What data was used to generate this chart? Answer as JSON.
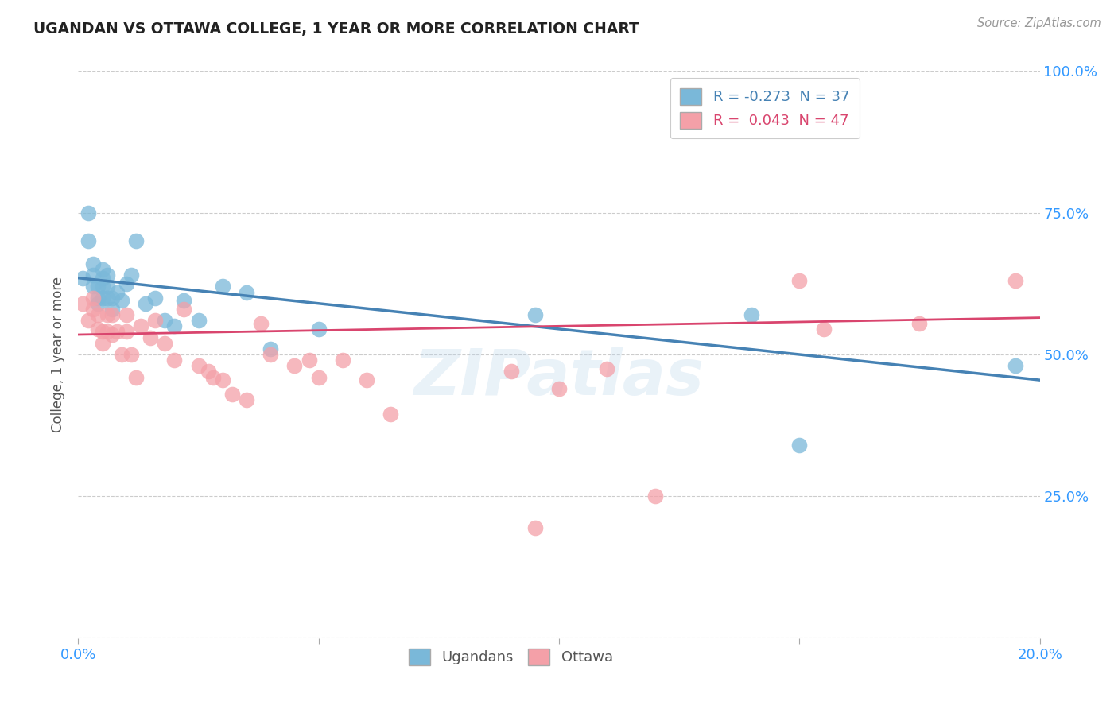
{
  "title": "UGANDAN VS OTTAWA COLLEGE, 1 YEAR OR MORE CORRELATION CHART",
  "source": "Source: ZipAtlas.com",
  "ylabel_label": "College, 1 year or more",
  "xmin": 0.0,
  "xmax": 0.2,
  "ymin": 0.0,
  "ymax": 1.0,
  "xtick_vals": [
    0.0,
    0.05,
    0.1,
    0.15,
    0.2
  ],
  "xtick_labels": [
    "0.0%",
    "",
    "",
    "",
    "20.0%"
  ],
  "ytick_vals": [
    0.0,
    0.25,
    0.5,
    0.75,
    1.0
  ],
  "ytick_labels": [
    "",
    "25.0%",
    "50.0%",
    "75.0%",
    "100.0%"
  ],
  "blue_R": -0.273,
  "blue_N": 37,
  "pink_R": 0.043,
  "pink_N": 47,
  "blue_color": "#7ab8d9",
  "pink_color": "#f4a0a8",
  "blue_line_color": "#4682b4",
  "pink_line_color": "#d9456e",
  "blue_line_y0": 0.635,
  "blue_line_y1": 0.455,
  "pink_line_y0": 0.535,
  "pink_line_y1": 0.565,
  "blue_points_x": [
    0.001,
    0.002,
    0.002,
    0.003,
    0.003,
    0.003,
    0.004,
    0.004,
    0.004,
    0.005,
    0.005,
    0.005,
    0.005,
    0.006,
    0.006,
    0.006,
    0.007,
    0.007,
    0.008,
    0.009,
    0.01,
    0.011,
    0.012,
    0.014,
    0.016,
    0.018,
    0.02,
    0.022,
    0.025,
    0.03,
    0.035,
    0.04,
    0.05,
    0.095,
    0.14,
    0.15,
    0.195
  ],
  "blue_points_y": [
    0.635,
    0.7,
    0.75,
    0.66,
    0.64,
    0.62,
    0.62,
    0.6,
    0.59,
    0.65,
    0.635,
    0.62,
    0.6,
    0.64,
    0.62,
    0.6,
    0.6,
    0.58,
    0.61,
    0.595,
    0.625,
    0.64,
    0.7,
    0.59,
    0.6,
    0.56,
    0.55,
    0.595,
    0.56,
    0.62,
    0.61,
    0.51,
    0.545,
    0.57,
    0.57,
    0.34,
    0.48
  ],
  "pink_points_x": [
    0.001,
    0.002,
    0.003,
    0.003,
    0.004,
    0.004,
    0.005,
    0.005,
    0.006,
    0.006,
    0.007,
    0.007,
    0.008,
    0.009,
    0.01,
    0.01,
    0.011,
    0.012,
    0.013,
    0.015,
    0.016,
    0.018,
    0.02,
    0.022,
    0.025,
    0.027,
    0.028,
    0.03,
    0.032,
    0.035,
    0.038,
    0.04,
    0.045,
    0.048,
    0.05,
    0.055,
    0.06,
    0.065,
    0.09,
    0.095,
    0.1,
    0.11,
    0.12,
    0.15,
    0.155,
    0.175,
    0.195
  ],
  "pink_points_y": [
    0.59,
    0.56,
    0.6,
    0.58,
    0.57,
    0.545,
    0.54,
    0.52,
    0.57,
    0.54,
    0.57,
    0.535,
    0.54,
    0.5,
    0.54,
    0.57,
    0.5,
    0.46,
    0.55,
    0.53,
    0.56,
    0.52,
    0.49,
    0.58,
    0.48,
    0.47,
    0.46,
    0.455,
    0.43,
    0.42,
    0.555,
    0.5,
    0.48,
    0.49,
    0.46,
    0.49,
    0.455,
    0.395,
    0.47,
    0.195,
    0.44,
    0.475,
    0.25,
    0.63,
    0.545,
    0.555,
    0.63
  ],
  "background_color": "#ffffff",
  "grid_color": "#cccccc"
}
